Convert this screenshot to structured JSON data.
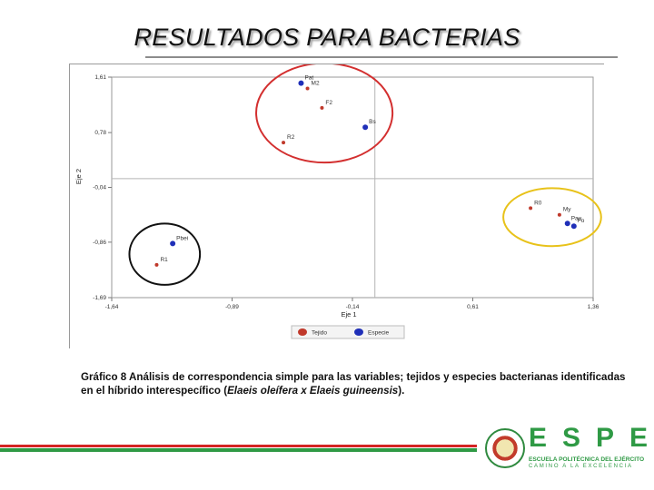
{
  "slide": {
    "title": "RESULTADOS PARA BACTERIAS"
  },
  "caption": {
    "text_before": "Gráfico 8 Análisis  de correspondencia simple para las variables; tejidos y especies bacterianas identificadas en el híbrido interespecífico (",
    "italic": "Elaeis oleífera x Elaeis guineensis",
    "text_after": ")."
  },
  "logo": {
    "brand": "ESPE",
    "subtitle": "ESCUELA POLITÉCNICA DEL EJÉRCITO",
    "motto": "CAMINO A LA EXCELENCIA"
  },
  "colors": {
    "tejido": "#c0392b",
    "especie": "#1f2fb8",
    "group_red": "#d32f2f",
    "group_yellow": "#e8c21a",
    "group_black": "#111111",
    "axis": "#7a7a7a"
  },
  "chart_data": {
    "type": "scatter",
    "title": "",
    "xlabel": "Eje 1",
    "ylabel": "Eje 2",
    "xlim": [
      -1.64,
      1.36
    ],
    "ylim": [
      -1.69,
      1.61
    ],
    "x_ticks": [
      "-1,64",
      "-0,89",
      "-0,14",
      "0,61",
      "1,36"
    ],
    "y_ticks": [
      "1,61",
      "0,78",
      "-0,04",
      "-0,86",
      "-1,69"
    ],
    "x_tick_values": [
      -1.64,
      -0.89,
      -0.14,
      0.61,
      1.36
    ],
    "y_tick_values": [
      1.61,
      0.78,
      -0.04,
      -0.86,
      -1.69
    ],
    "reference_lines": {
      "x": 0.0,
      "y": 0.09
    },
    "legend": {
      "position": "bottom",
      "entries": [
        {
          "label": "Tejido",
          "series": "tejido"
        },
        {
          "label": "Especie",
          "series": "especie"
        }
      ]
    },
    "series": [
      {
        "name": "Tejido",
        "key": "tejido",
        "points": [
          {
            "label": "M2",
            "x": -0.42,
            "y": 1.44
          },
          {
            "label": "F2",
            "x": -0.33,
            "y": 1.15
          },
          {
            "label": "R2",
            "x": -0.57,
            "y": 0.63
          },
          {
            "label": "R0",
            "x": 0.97,
            "y": -0.35
          },
          {
            "label": "My",
            "x": 1.15,
            "y": -0.45
          },
          {
            "label": "R1",
            "x": -1.36,
            "y": -1.2
          }
        ]
      },
      {
        "name": "Especie",
        "key": "especie",
        "points": [
          {
            "label": "Pat",
            "x": -0.46,
            "y": 1.52
          },
          {
            "label": "Bs",
            "x": -0.06,
            "y": 0.86
          },
          {
            "label": "Pau",
            "x": 1.2,
            "y": -0.58
          },
          {
            "label": "Fo",
            "x": 1.24,
            "y": -0.62
          },
          {
            "label": "Pbei",
            "x": -1.26,
            "y": -0.88
          }
        ]
      }
    ],
    "groups": [
      {
        "color": "red",
        "members": [
          "Pat",
          "M2",
          "F2",
          "R2",
          "Bs"
        ]
      },
      {
        "color": "yellow",
        "members": [
          "R0",
          "Pau",
          "My",
          "Fo"
        ]
      },
      {
        "color": "black",
        "members": [
          "Pbei",
          "R1"
        ]
      }
    ]
  }
}
